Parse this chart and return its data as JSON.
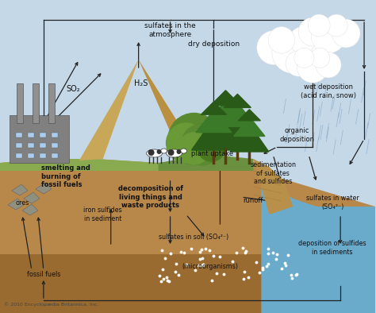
{
  "figsize": [
    4.74,
    3.94
  ],
  "dpi": 100,
  "sky_color": "#c5d8e8",
  "soil_color": "#b8874a",
  "deep_soil_color": "#9a6b30",
  "water_color": "#6aabcc",
  "grass_color": "#7ba05b",
  "volcano_light": "#c8a060",
  "volcano_dark": "#a07030",
  "cliff_color": "#b8904a",
  "factory_color": "#707070",
  "labels": {
    "sulfates_atm": "sulfates in the\natmosphere",
    "SO2": "SO₂",
    "H2S": "H₂S",
    "dry_dep": "dry deposition",
    "wet_dep": "wet deposition\n(acid rain, snow)",
    "organic_dep": "organic\ndeposition",
    "smelting": "smelting and\nburning of\nfossil fuels",
    "decomposition": "decomposition of\nliving things and\nwaste products",
    "plant_uptake": "plant uptake",
    "sedimentation": "sedimentation\nof sulfates\nand sulfides",
    "runoff": "runoff",
    "sulfates_water": "sulfates in water\n(SO₄²⁻)",
    "dep_sulfides": "deposition of sulfides\nin sediments",
    "ores": "ores",
    "fossil_fuels": "fossil fuels",
    "iron_sulfides": "iron sulfides\nin sediment",
    "sulfates_soil": "sulfates in soil (SO₄²⁻)",
    "microorganisms": "(microorganisms)",
    "copyright": "© 2010 Encyclopædia Britannica, Inc."
  },
  "arrow_color": "#222222"
}
